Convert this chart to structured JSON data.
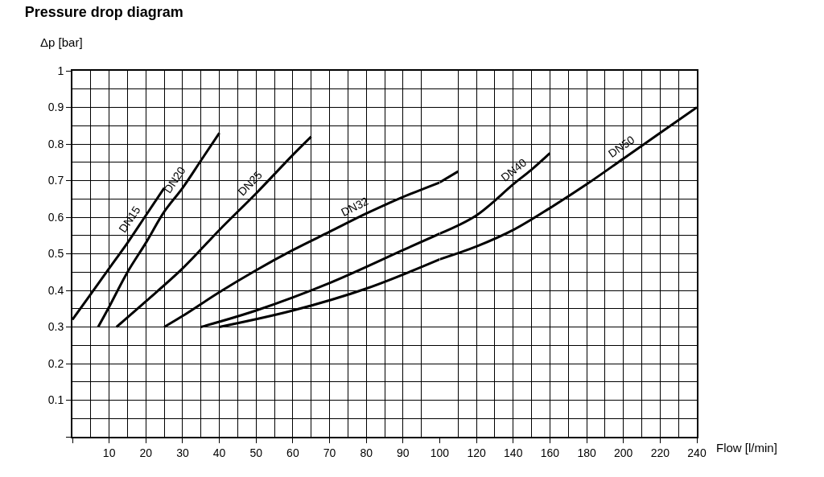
{
  "chart_data": [
    {
      "type": "line",
      "title": "Pressure drop diagram",
      "ylabel": "Δp [bar]",
      "xlim": [
        0,
        100
      ],
      "xticks": [
        {
          "value": 0,
          "label": null
        },
        10,
        20,
        30,
        40,
        50,
        60,
        70,
        80,
        90,
        100
      ],
      "ylim": [
        0,
        1
      ],
      "yticks": [
        {
          "value": 0,
          "label": null
        },
        0.1,
        0.2,
        0.3,
        0.4,
        0.5,
        0.6,
        0.7,
        0.8,
        0.9,
        1
      ],
      "grid": true,
      "legend": false,
      "marker": "none",
      "line_style": "solid",
      "series": [
        {
          "name": "DN15",
          "color": "#000000",
          "x": [
            0,
            5,
            10,
            15,
            20,
            25
          ],
          "values": [
            0.32,
            0.39,
            0.46,
            0.53,
            0.605,
            0.68
          ]
        },
        {
          "name": "DN20",
          "color": "#000000",
          "x": [
            7,
            10,
            15,
            20,
            25,
            30,
            35,
            40
          ],
          "values": [
            0.3,
            0.355,
            0.45,
            0.53,
            0.615,
            0.68,
            0.755,
            0.83
          ]
        },
        {
          "name": "DN25",
          "color": "#000000",
          "x": [
            12,
            20,
            30,
            40,
            50,
            60,
            65
          ],
          "values": [
            0.3,
            0.37,
            0.46,
            0.565,
            0.665,
            0.77,
            0.82
          ]
        },
        {
          "name": "DN32",
          "color": "#000000",
          "x": [
            25,
            30,
            40,
            50,
            60,
            70,
            80,
            90,
            100
          ],
          "values": [
            0.3,
            0.33,
            0.395,
            0.455,
            0.51,
            0.56,
            0.61,
            0.655,
            0.695
          ]
        },
        {
          "color": "#000000",
          "x": [
            35,
            50,
            70,
            90,
            100
          ],
          "values": [
            0.3,
            0.345,
            0.42,
            0.51,
            0.555
          ]
        },
        {
          "color": "#000000",
          "x": [
            40,
            60,
            80,
            100
          ],
          "values": [
            0.3,
            0.345,
            0.405,
            0.485
          ]
        }
      ]
    },
    {
      "type": "line",
      "xlabel": "Flow [l/min]",
      "xlim": [
        100,
        240
      ],
      "xticks": [
        {
          "value": 100,
          "label": null
        },
        120,
        140,
        160,
        180,
        200,
        220,
        240
      ],
      "ylim": [
        0,
        1
      ],
      "yticks": [
        0,
        0.1,
        0.2,
        0.3,
        0.4,
        0.5,
        0.6,
        0.7,
        0.8,
        0.9,
        1
      ],
      "tick_labels": "x",
      "grid": true,
      "legend": false,
      "marker": "none",
      "line_style": "solid",
      "series": [
        {
          "color": "#000000",
          "x": [
            100,
            110
          ],
          "values": [
            0.695,
            0.725
          ]
        },
        {
          "name": "DN40",
          "color": "#000000",
          "x": [
            100,
            120,
            140,
            150,
            160
          ],
          "values": [
            0.555,
            0.605,
            0.69,
            0.73,
            0.775
          ]
        },
        {
          "name": "DN50",
          "color": "#000000",
          "x": [
            100,
            120,
            140,
            160,
            180,
            200,
            220,
            240
          ],
          "values": [
            0.485,
            0.52,
            0.565,
            0.625,
            0.69,
            0.76,
            0.83,
            0.9
          ]
        }
      ]
    }
  ]
}
